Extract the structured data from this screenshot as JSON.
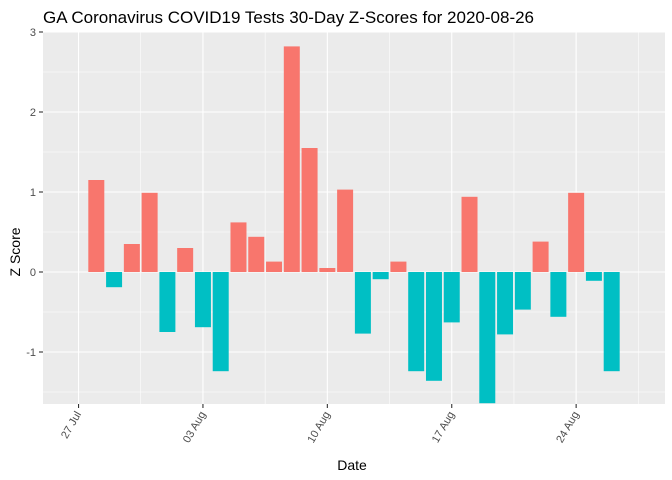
{
  "chart_data": {
    "type": "bar",
    "title": "GA Coronavirus COVID19 Tests 30-Day Z-Scores for 2020-08-26",
    "xlabel": "Date",
    "ylabel": "Z Score",
    "x_ticks": [
      "27 Jul",
      "03 Aug",
      "10 Aug",
      "17 Aug",
      "24 Aug"
    ],
    "y_ticks": [
      "-1",
      "0",
      "1",
      "2",
      "3"
    ],
    "ylim": [
      -1.65,
      3.0
    ],
    "grid": true,
    "legend": "none",
    "colors": {
      "positive": "#F8766D",
      "negative": "#00BFC4",
      "panel": "#EBEBEB",
      "gridline": "#FFFFFF"
    },
    "x": [
      "2020-07-28",
      "2020-07-29",
      "2020-07-30",
      "2020-07-31",
      "2020-08-01",
      "2020-08-02",
      "2020-08-03",
      "2020-08-04",
      "2020-08-05",
      "2020-08-06",
      "2020-08-07",
      "2020-08-08",
      "2020-08-09",
      "2020-08-10",
      "2020-08-11",
      "2020-08-12",
      "2020-08-13",
      "2020-08-14",
      "2020-08-15",
      "2020-08-16",
      "2020-08-17",
      "2020-08-18",
      "2020-08-19",
      "2020-08-20",
      "2020-08-21",
      "2020-08-22",
      "2020-08-23",
      "2020-08-24",
      "2020-08-25",
      "2020-08-26"
    ],
    "values": [
      1.15,
      -0.19,
      0.35,
      0.99,
      -0.75,
      0.3,
      -0.69,
      -1.24,
      0.62,
      0.44,
      0.13,
      2.82,
      1.55,
      0.05,
      1.03,
      -0.77,
      -0.09,
      0.13,
      -1.24,
      -1.36,
      -0.63,
      0.94,
      -1.64,
      -0.78,
      -0.47,
      0.38,
      -0.56,
      0.99,
      -0.11,
      -1.24
    ]
  }
}
